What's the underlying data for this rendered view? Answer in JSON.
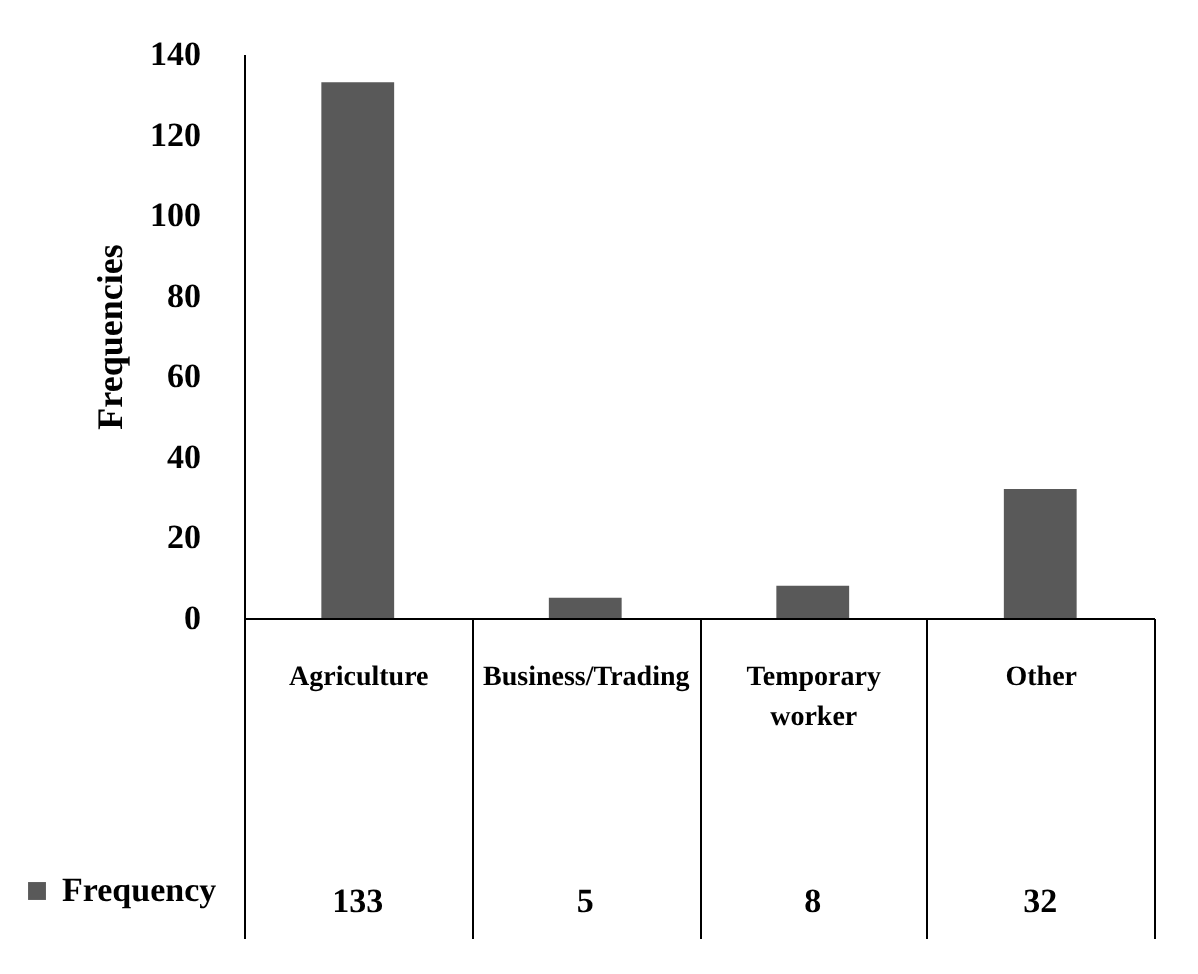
{
  "chart_data": {
    "type": "bar",
    "ylabel": "Frequencies",
    "categories": [
      "Agriculture",
      "Business/Trading",
      "Temporary worker",
      "Other"
    ],
    "series": [
      {
        "name": "Frequency",
        "color": "#595959",
        "values": [
          133,
          5,
          8,
          32
        ]
      }
    ],
    "ylim": [
      0,
      140
    ],
    "yticks": [
      0,
      20,
      40,
      60,
      80,
      100,
      120,
      140
    ],
    "grid": false,
    "data_labels": true,
    "legend": "bottom left"
  }
}
